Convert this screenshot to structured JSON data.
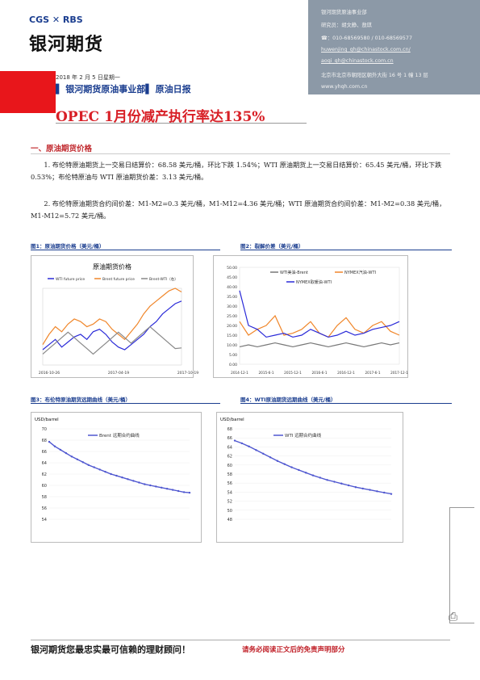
{
  "header": {
    "logo_top": "CGS ✕ RBS",
    "logo_cn": "银河期货",
    "contact": {
      "dept": "银河期货原油事业部",
      "researchers": "研究员：胡文静、敖琪",
      "phone": "☎：010-68569580 / 010-68569577",
      "email1": "huwenjing_qh@chinastock.com.cn/",
      "email2": "aoqi_qh@chinastock.com.cn",
      "address": "北京市北京市朝阳区朝外大街 16 号 1 幢 13 层",
      "web": "www.yhqh.com.cn"
    },
    "date_line": "2018 年 2 月 5 日星期一",
    "dept_line": "▌ 银河期货原油事业部▌ 原油日报",
    "title": "OPEC 1月份减产执行率达135%"
  },
  "section1": {
    "heading": "一、原油期货价格",
    "p1": "1. 布伦特原油期货上一交易日结算价：68.58 美元/桶，环比下跌 1.54%；WTI 原油期货上一交易日结算价：65.45 美元/桶，环比下跌 0.53%；布伦特原油与 WTI 原油期货价差：3.13 美元/桶。",
    "p2": "2. 布伦特原油期货合约间价差：M1-M2=0.3 美元/桶，M1-M12=4.36 美元/桶；WTI 原油期货合约间价差：M1-M2=0.38 美元/桶，M1-M12=5.72 美元/桶。"
  },
  "figures": {
    "fig1_caption": "图1：原油期货价格（美元/桶）",
    "fig2_caption": "图2：裂解价差（美元/桶）",
    "fig3_caption": "图3：布伦特原油期货远期曲线（美元/桶）",
    "fig4_caption": "图4：WTI原油期货远期曲线（美元/桶）"
  },
  "chart_data": [
    {
      "type": "line",
      "title": "原油期货价格",
      "series": [
        {
          "name": "WTI future price",
          "values": [
            46,
            48,
            50,
            47,
            49,
            51,
            52,
            50,
            53,
            54,
            52,
            49,
            47,
            46,
            48,
            50,
            52,
            55,
            57,
            60,
            62,
            64,
            65
          ]
        },
        {
          "name": "Brent future price",
          "values": [
            48,
            52,
            55,
            53,
            56,
            58,
            57,
            55,
            56,
            58,
            57,
            54,
            52,
            50,
            53,
            56,
            60,
            63,
            65,
            67,
            69,
            70,
            68.58
          ]
        },
        {
          "name": "Brent-WTI（右）",
          "values": [
            2,
            3,
            4,
            5,
            6,
            5,
            4,
            3,
            2,
            3,
            4,
            5,
            6,
            5,
            4,
            5,
            6,
            7,
            6,
            5,
            4,
            3,
            3.13
          ]
        }
      ],
      "x_ticks": [
        "2016-10-26",
        "2017-04-19",
        "2017-10-19"
      ],
      "ylim": [
        40,
        70
      ],
      "y2lim": [
        0,
        14
      ]
    },
    {
      "type": "line",
      "series": [
        {
          "name": "WTI美油-Brent",
          "values": [
            9,
            10,
            9,
            10,
            11,
            10,
            9,
            10,
            11,
            10,
            9,
            10,
            11,
            10,
            9,
            10,
            11,
            10,
            11
          ]
        },
        {
          "name": "NYMEX汽油-WTI",
          "values": [
            22,
            15,
            18,
            20,
            25,
            15,
            16,
            18,
            22,
            16,
            14,
            20,
            24,
            18,
            16,
            20,
            22,
            17,
            15
          ]
        },
        {
          "name": "NYMEX取暖油-WTI",
          "values": [
            38,
            20,
            18,
            14,
            15,
            16,
            14,
            15,
            18,
            16,
            14,
            15,
            17,
            15,
            16,
            18,
            19,
            20,
            22
          ]
        }
      ],
      "x_ticks": [
        "2014-12-1",
        "2015-6-1",
        "2015-12-1",
        "2016-6-1",
        "2016-12-1",
        "2017-6-1",
        "2017-12-1"
      ],
      "y_ticks": [
        "0.00",
        "5.00",
        "10.00",
        "15.00",
        "20.00",
        "25.00",
        "30.00",
        "35.00",
        "40.00",
        "45.00",
        "50.00"
      ],
      "ylim": [
        0,
        50
      ]
    },
    {
      "type": "line",
      "ylabel": "USD/barrel",
      "series": [
        {
          "name": "Brent 远期合约曲线",
          "values": [
            67.7,
            66.9,
            66.3,
            65.7,
            65.1,
            64.6,
            64.1,
            63.6,
            63.2,
            62.8,
            62.4,
            62.0,
            61.7,
            61.4,
            61.1,
            60.8,
            60.5,
            60.2,
            60.0,
            59.8,
            59.6,
            59.4,
            59.2,
            59.0,
            58.8,
            58.7
          ]
        }
      ],
      "y_ticks": [
        "54",
        "56",
        "58",
        "60",
        "62",
        "64",
        "66",
        "68",
        "70"
      ],
      "ylim": [
        54,
        70
      ]
    },
    {
      "type": "line",
      "ylabel": "USD/barrel",
      "series": [
        {
          "name": "WTI 远期合约曲线",
          "values": [
            65.4,
            64.8,
            64.1,
            63.3,
            62.5,
            61.7,
            60.9,
            60.2,
            59.5,
            58.9,
            58.3,
            57.7,
            57.2,
            56.7,
            56.3,
            55.9,
            55.5,
            55.1,
            54.8,
            54.5,
            54.2,
            53.9,
            53.6
          ]
        }
      ],
      "y_ticks": [
        "48",
        "50",
        "52",
        "54",
        "56",
        "58",
        "60",
        "62",
        "64",
        "66",
        "68"
      ],
      "ylim": [
        48,
        68
      ]
    }
  ],
  "footer": {
    "slogan": "银河期货您最忠实最可信赖的理财顾问！",
    "note": "请务必阅读正文后的免责声明部分"
  }
}
